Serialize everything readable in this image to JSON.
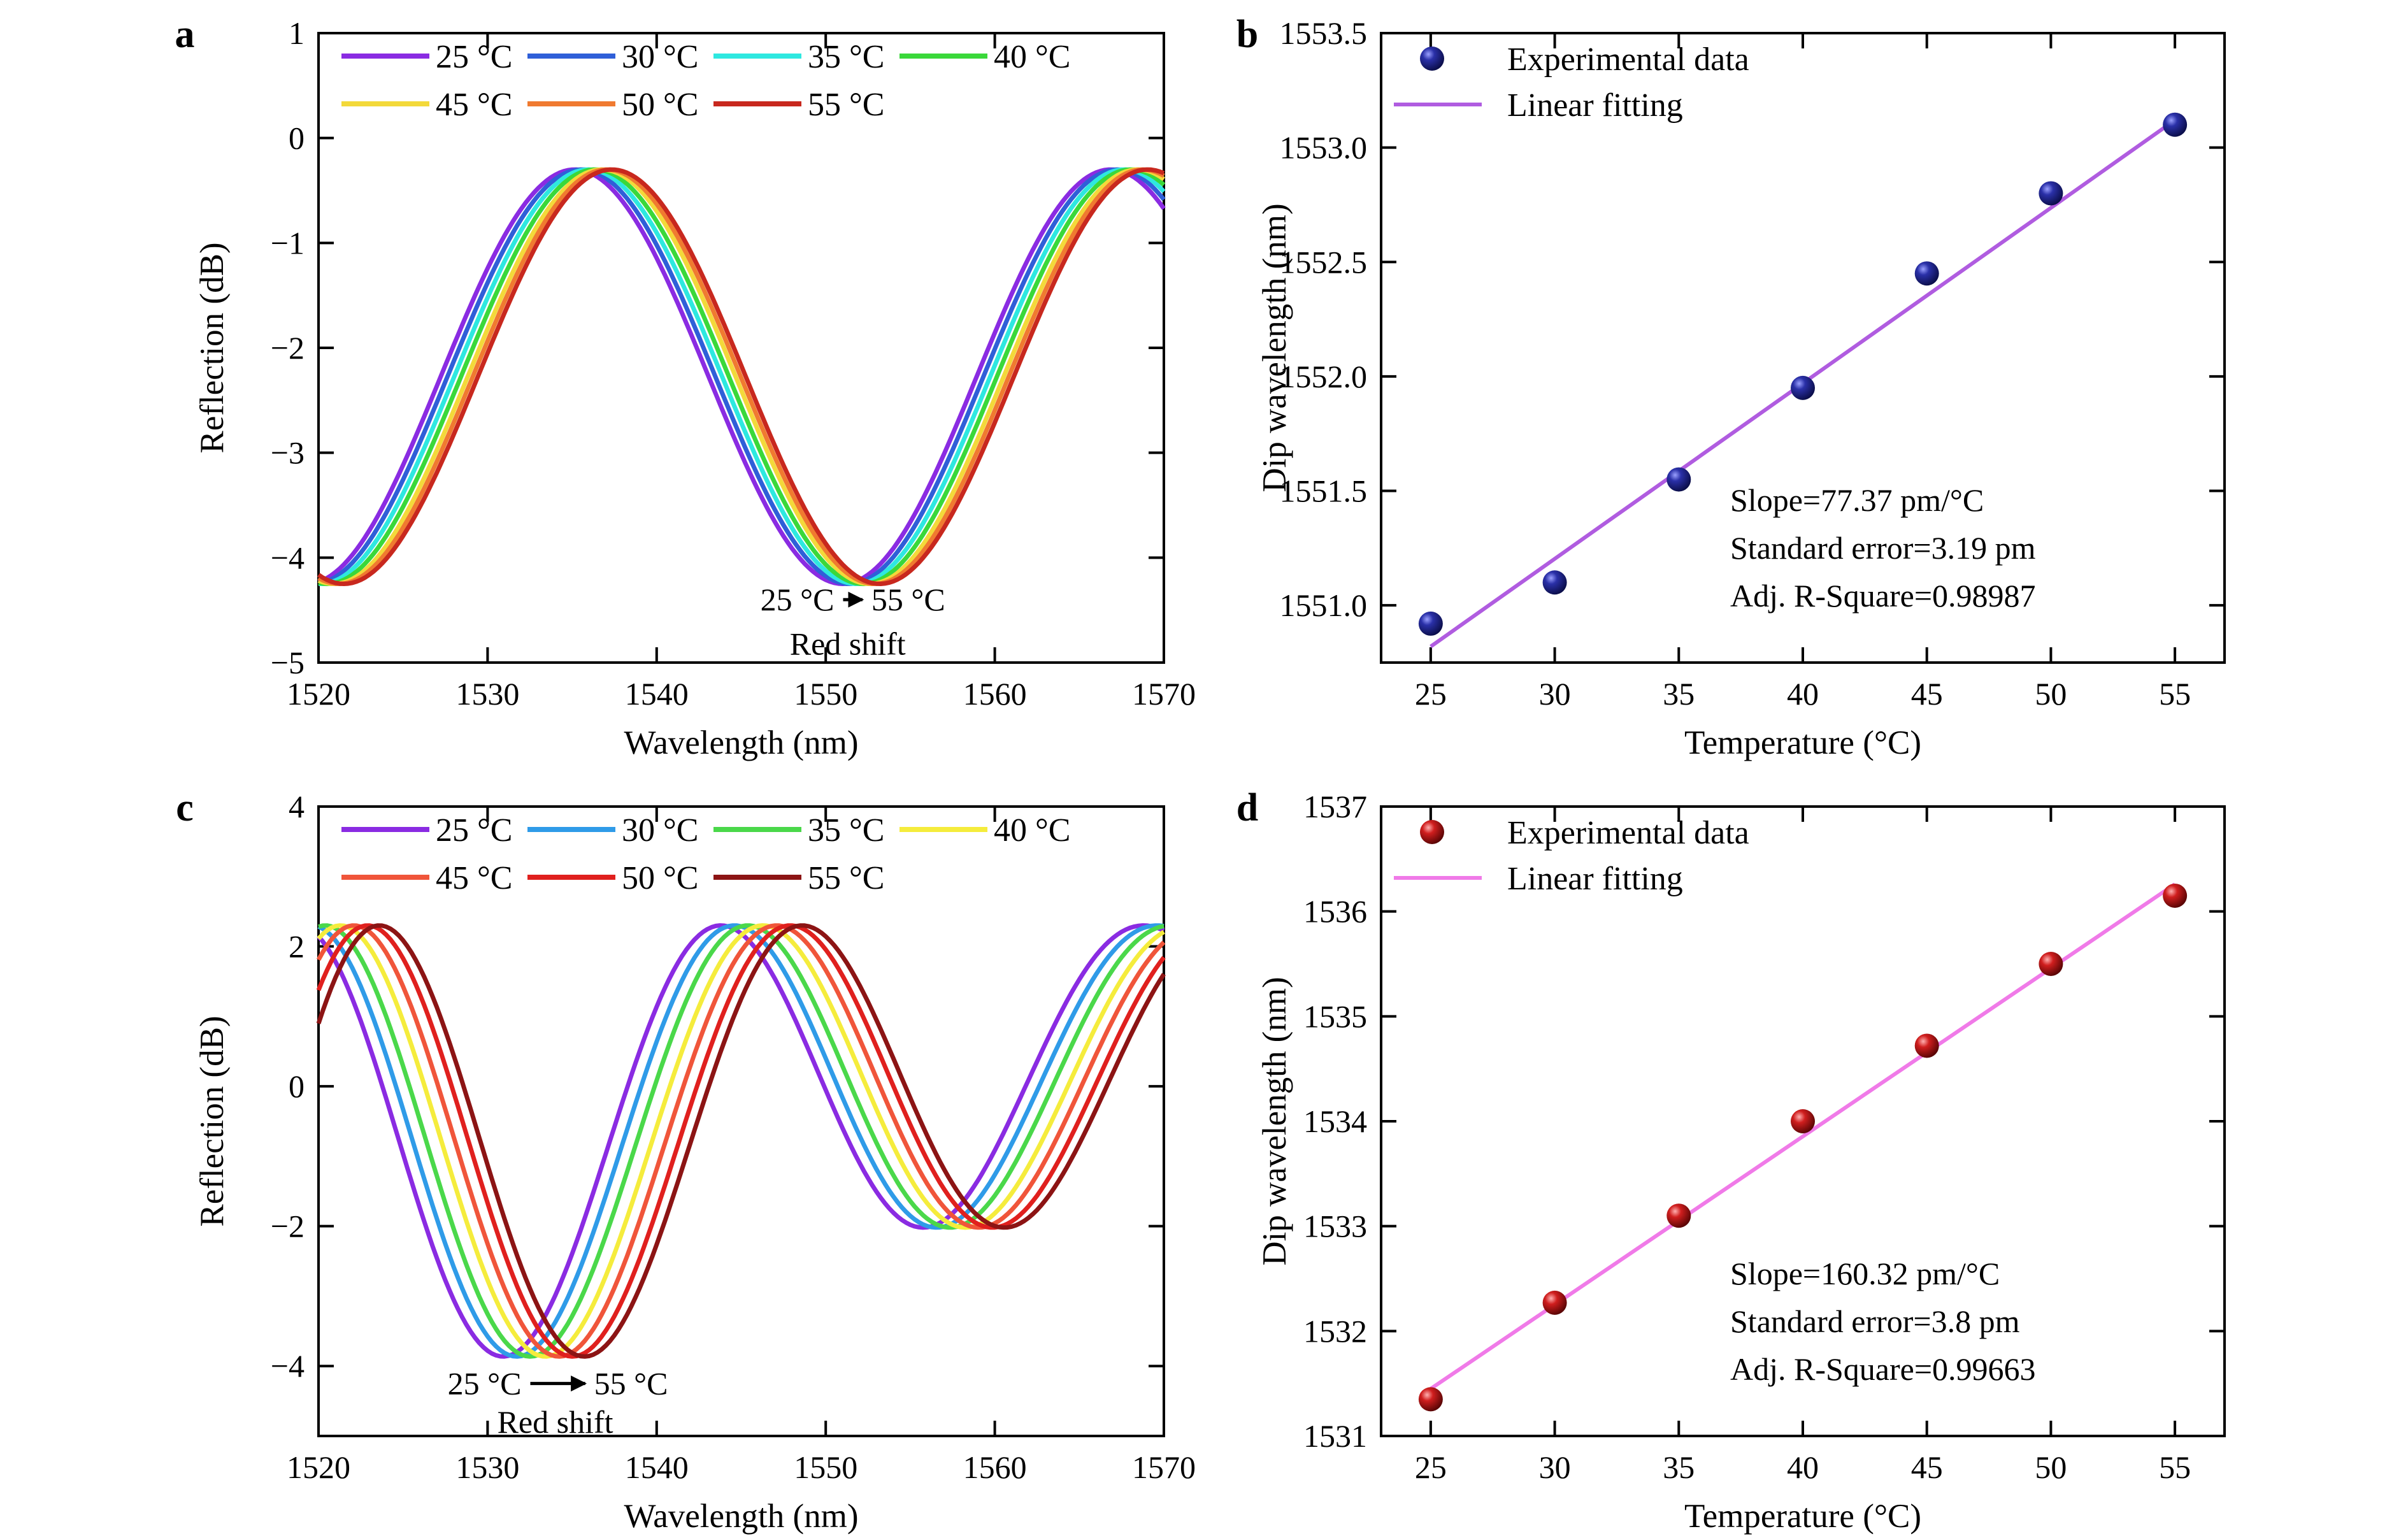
{
  "figure": {
    "panels": [
      {
        "id": "a",
        "letter": "a",
        "chart_data": {
          "type": "line",
          "xlabel": "Wavelength (nm)",
          "ylabel": "Reflection (dB)",
          "xlim": [
            1520,
            1570
          ],
          "ylim": [
            -5,
            1
          ],
          "xticks": [
            1520,
            1530,
            1540,
            1550,
            1560,
            1570
          ],
          "yticks": [
            -5,
            -4,
            -3,
            -2,
            -1,
            0,
            1
          ],
          "ytick_labels": [
            "−5",
            "−4",
            "−3",
            "−2",
            "−1",
            "0",
            "1"
          ],
          "legend_placement": "top",
          "curve_model": {
            "trough_dB": -4.25,
            "peak_dB": -0.3,
            "period_nm": 31.7
          },
          "series": [
            {
              "name": "25 °C",
              "color": "#8a2be2",
              "dip_nm": 1551.0
            },
            {
              "name": "30 °C",
              "color": "#2f5fd8",
              "dip_nm": 1551.4
            },
            {
              "name": "35 °C",
              "color": "#2ee8e0",
              "dip_nm": 1551.8
            },
            {
              "name": "40 °C",
              "color": "#3ad83a",
              "dip_nm": 1552.2
            },
            {
              "name": "45 °C",
              "color": "#f3d93a",
              "dip_nm": 1552.6
            },
            {
              "name": "50 °C",
              "color": "#f07a30",
              "dip_nm": 1552.9
            },
            {
              "name": "55 °C",
              "color": "#c8281e",
              "dip_nm": 1553.2
            }
          ],
          "annotations": [
            {
              "text": "25 °C",
              "kind": "from",
              "x": 1550.5,
              "y": -4.4
            },
            {
              "text": "55 °C",
              "kind": "to",
              "x": 1552.7,
              "y": -4.4
            },
            {
              "text": "Red shift",
              "kind": "caption",
              "x": 1551.3,
              "y": -4.82
            }
          ]
        }
      },
      {
        "id": "b",
        "letter": "b",
        "chart_data": {
          "type": "scatter",
          "xlabel": "Temperature (°C)",
          "ylabel": "Dip wavelength (nm)",
          "xlim": [
            23,
            57
          ],
          "ylim": [
            1550.75,
            1553.5
          ],
          "xticks": [
            25,
            30,
            35,
            40,
            45,
            50,
            55
          ],
          "yticks": [
            1551.0,
            1551.5,
            1552.0,
            1552.5,
            1553.0,
            1553.5
          ],
          "ytick_labels": [
            "1551.0",
            "1551.5",
            "1552.0",
            "1552.5",
            "1553.0",
            "1553.5"
          ],
          "marker_color": "#1a1f8c",
          "fit_color": "#b05ce0",
          "points": {
            "x": [
              25,
              30,
              35,
              40,
              45,
              50,
              55
            ],
            "y": [
              1550.92,
              1551.1,
              1551.55,
              1551.95,
              1552.45,
              1552.8,
              1553.1
            ]
          },
          "fit": {
            "x": [
              25,
              55
            ],
            "y": [
              1550.82,
              1553.12
            ]
          },
          "legend": {
            "scatter": "Experimental data",
            "line": "Linear fitting"
          },
          "legend_placement": "top-left",
          "stats": [
            "Slope=77.37 pm/°C",
            "Standard error=3.19 pm",
            "Adj. R-Square=0.98987"
          ],
          "stats_placement": "bottom-right"
        }
      },
      {
        "id": "c",
        "letter": "c",
        "chart_data": {
          "type": "line",
          "xlabel": "Wavelength (nm)",
          "ylabel": "Reflection (dB)",
          "xlim": [
            1520,
            1570
          ],
          "ylim": [
            -5,
            4
          ],
          "xticks": [
            1520,
            1530,
            1540,
            1550,
            1560,
            1570
          ],
          "yticks": [
            -4,
            -2,
            0,
            2,
            4
          ],
          "ytick_labels": [
            "−4",
            "−2",
            "0",
            "2",
            "4"
          ],
          "legend_placement": "top",
          "curve_model": {
            "period_nm": 25.0,
            "dip1_dB": -3.85,
            "dip2_dB": -2.0,
            "peak_dB": 2.3
          },
          "series": [
            {
              "name": "25 °C",
              "color": "#8a2be2",
              "dip_nm": 1531.3
            },
            {
              "name": "30 °C",
              "color": "#2f9be8",
              "dip_nm": 1532.1
            },
            {
              "name": "35 °C",
              "color": "#4ad84a",
              "dip_nm": 1532.9
            },
            {
              "name": "40 °C",
              "color": "#f5ec3c",
              "dip_nm": 1533.8
            },
            {
              "name": "45 °C",
              "color": "#f0553a",
              "dip_nm": 1534.6
            },
            {
              "name": "50 °C",
              "color": "#e0201e",
              "dip_nm": 1535.4
            },
            {
              "name": "55 °C",
              "color": "#8c1414",
              "dip_nm": 1536.1
            }
          ],
          "annotations": [
            {
              "text": "25 °C",
              "kind": "from",
              "x": 1532.0,
              "y": -4.25
            },
            {
              "text": "55 °C",
              "kind": "to",
              "x": 1536.3,
              "y": -4.25
            },
            {
              "text": "Red shift",
              "kind": "caption",
              "x": 1534.0,
              "y": -4.8
            }
          ]
        }
      },
      {
        "id": "d",
        "letter": "d",
        "chart_data": {
          "type": "scatter",
          "xlabel": "Temperature (°C)",
          "ylabel": "Dip wavelength (nm)",
          "xlim": [
            23,
            57
          ],
          "ylim": [
            1531,
            1537
          ],
          "xticks": [
            25,
            30,
            35,
            40,
            45,
            50,
            55
          ],
          "yticks": [
            1531,
            1532,
            1533,
            1534,
            1535,
            1536,
            1537
          ],
          "ytick_labels": [
            "1531",
            "1532",
            "1533",
            "1534",
            "1535",
            "1536",
            "1537"
          ],
          "marker_color": "#c41a1a",
          "fit_color": "#f07ae8",
          "points": {
            "x": [
              25,
              30,
              35,
              40,
              45,
              50,
              55
            ],
            "y": [
              1531.35,
              1532.27,
              1533.1,
              1534.0,
              1534.72,
              1535.5,
              1536.15
            ]
          },
          "fit": {
            "x": [
              25,
              55
            ],
            "y": [
              1531.45,
              1536.26
            ]
          },
          "legend": {
            "scatter": "Experimental data",
            "line": "Linear fitting"
          },
          "legend_placement": "top-left",
          "stats": [
            "Slope=160.32 pm/°C",
            "Standard error=3.8 pm",
            "Adj. R-Square=0.99663"
          ],
          "stats_placement": "bottom-right"
        }
      }
    ]
  }
}
